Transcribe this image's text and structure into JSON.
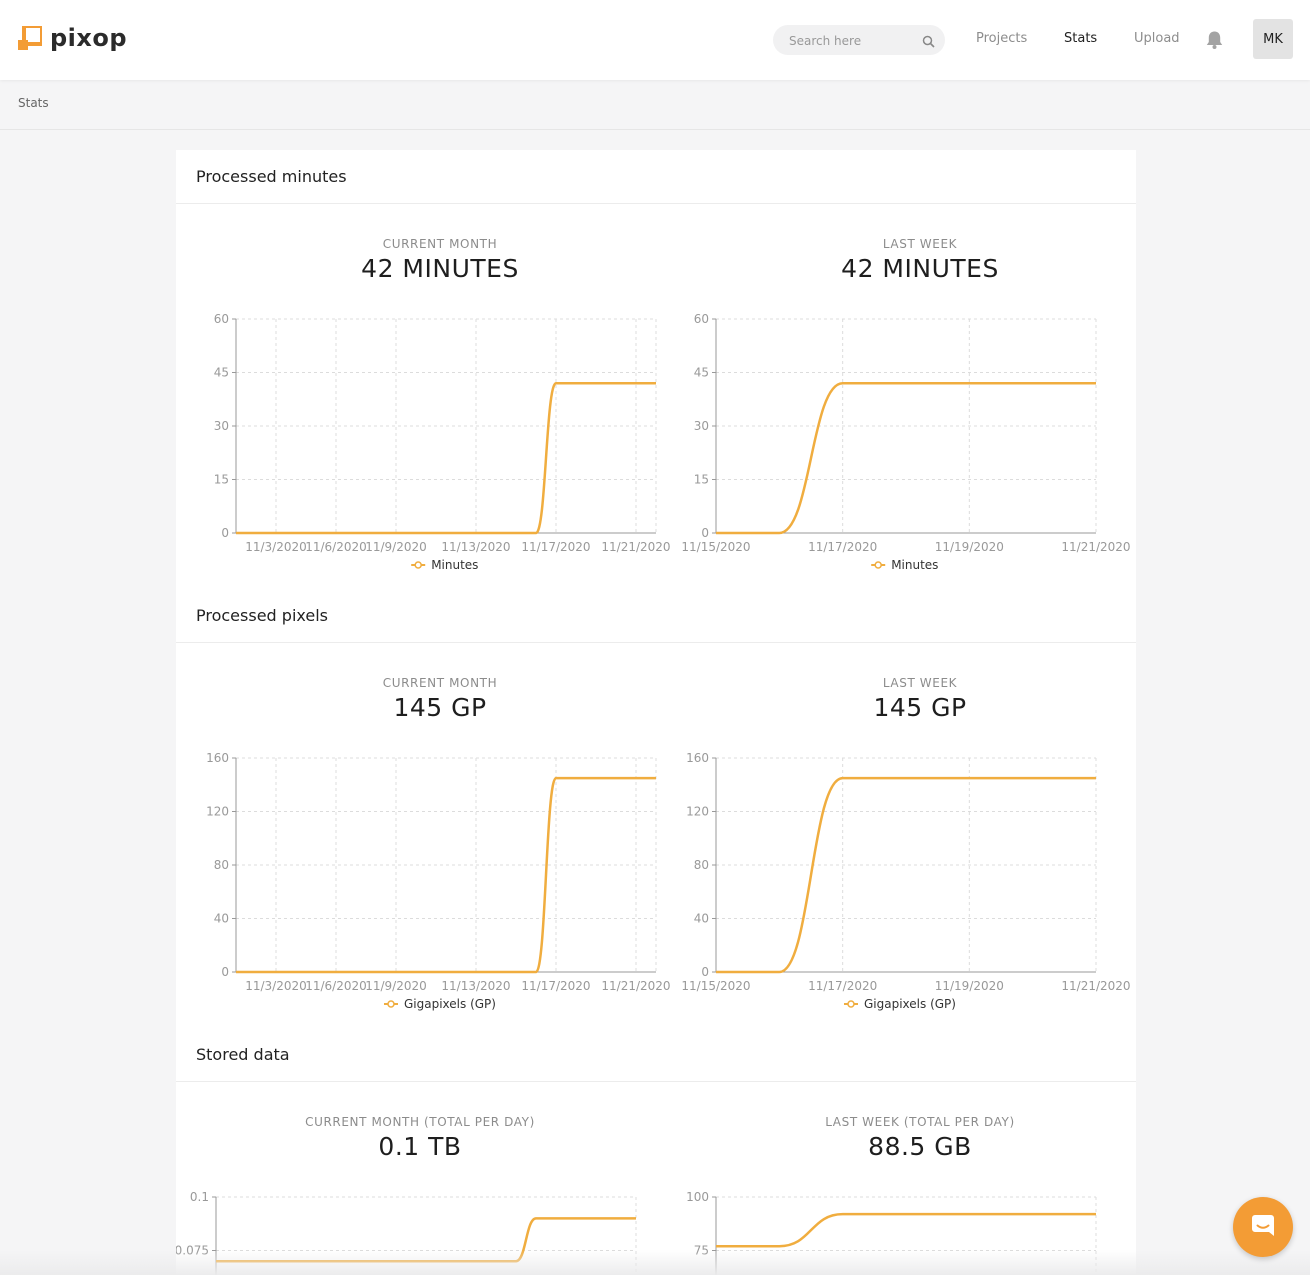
{
  "header": {
    "logo_text": "pixop",
    "search_placeholder": "Search here",
    "nav": [
      "Projects",
      "Stats",
      "Upload"
    ],
    "active_nav": "Stats",
    "avatar_initials": "MK"
  },
  "breadcrumb": "Stats",
  "colors": {
    "line": "#f0ad3f",
    "accent": "#f39c35"
  },
  "sections": [
    {
      "title": "Processed minutes",
      "panels": [
        {
          "label": "CURRENT MONTH",
          "value": "42 MINUTES",
          "legend": "Minutes"
        },
        {
          "label": "LAST WEEK",
          "value": "42 MINUTES",
          "legend": "Minutes"
        }
      ]
    },
    {
      "title": "Processed pixels",
      "panels": [
        {
          "label": "CURRENT MONTH",
          "value": "145 GP",
          "legend": "Gigapixels (GP)"
        },
        {
          "label": "LAST WEEK",
          "value": "145 GP",
          "legend": "Gigapixels (GP)"
        }
      ]
    },
    {
      "title": "Stored data",
      "panels": [
        {
          "label": "CURRENT MONTH (TOTAL PER DAY)",
          "value": "0.1 TB"
        },
        {
          "label": "LAST WEEK (TOTAL PER DAY)",
          "value": "88.5 GB"
        }
      ]
    }
  ],
  "chart_data": [
    {
      "type": "line",
      "series": [
        {
          "name": "Minutes",
          "points": [
            [
              "11/1/2020",
              0
            ],
            [
              "11/16/2020",
              0
            ],
            [
              "11/17/2020",
              42
            ],
            [
              "11/22/2020",
              42
            ]
          ]
        }
      ],
      "yticks": [
        0,
        15,
        30,
        45,
        60
      ],
      "ylim": [
        0,
        60
      ],
      "xticks": [
        "11/3/2020",
        "11/6/2020",
        "11/9/2020",
        "11/13/2020",
        "11/17/2020",
        "11/21/2020"
      ],
      "legend": "bottom",
      "grid": true
    },
    {
      "type": "line",
      "series": [
        {
          "name": "Minutes",
          "points": [
            [
              "11/15/2020",
              0
            ],
            [
              "11/16/2020",
              0
            ],
            [
              "11/17/2020",
              42
            ],
            [
              "11/21/2020",
              42
            ]
          ]
        }
      ],
      "yticks": [
        0,
        15,
        30,
        45,
        60
      ],
      "ylim": [
        0,
        60
      ],
      "xticks": [
        "11/15/2020",
        "11/17/2020",
        "11/19/2020",
        "11/21/2020"
      ],
      "legend": "bottom",
      "grid": true
    },
    {
      "type": "line",
      "series": [
        {
          "name": "Gigapixels (GP)",
          "points": [
            [
              "11/1/2020",
              0
            ],
            [
              "11/16/2020",
              0
            ],
            [
              "11/17/2020",
              145
            ],
            [
              "11/22/2020",
              145
            ]
          ]
        }
      ],
      "yticks": [
        0,
        40,
        80,
        120,
        160
      ],
      "ylim": [
        0,
        160
      ],
      "xticks": [
        "11/3/2020",
        "11/6/2020",
        "11/9/2020",
        "11/13/2020",
        "11/17/2020",
        "11/21/2020"
      ],
      "legend": "bottom",
      "grid": true
    },
    {
      "type": "line",
      "series": [
        {
          "name": "Gigapixels (GP)",
          "points": [
            [
              "11/15/2020",
              0
            ],
            [
              "11/16/2020",
              0
            ],
            [
              "11/17/2020",
              145
            ],
            [
              "11/21/2020",
              145
            ]
          ]
        }
      ],
      "yticks": [
        0,
        40,
        80,
        120,
        160
      ],
      "ylim": [
        0,
        160
      ],
      "xticks": [
        "11/15/2020",
        "11/17/2020",
        "11/19/2020",
        "11/21/2020"
      ],
      "legend": "bottom",
      "grid": true
    },
    {
      "type": "line",
      "series": [
        {
          "points": [
            [
              "11/1/2020",
              0.07
            ],
            [
              "11/16/2020",
              0.07
            ],
            [
              "11/17/2020",
              0.09
            ],
            [
              "11/22/2020",
              0.09
            ]
          ]
        }
      ],
      "yticks": [
        0.075,
        0.1
      ],
      "ylim": [
        0.05,
        0.1
      ],
      "grid": true
    },
    {
      "type": "line",
      "series": [
        {
          "points": [
            [
              "11/15/2020",
              77
            ],
            [
              "11/16/2020",
              77
            ],
            [
              "11/17/2020",
              92
            ],
            [
              "11/21/2020",
              92
            ]
          ]
        }
      ],
      "yticks": [
        75,
        100
      ],
      "ylim": [
        50,
        100
      ],
      "grid": true
    }
  ]
}
